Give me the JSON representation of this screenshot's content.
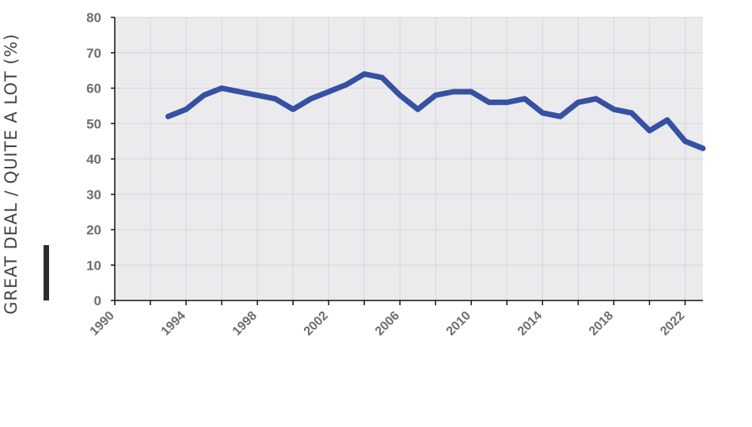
{
  "chart_data": {
    "type": "line",
    "title": "",
    "xlabel": "",
    "ylabel": "GREAT DEAL / QUITE A LOT (%)",
    "xlim": [
      1990,
      2023
    ],
    "ylim": [
      0,
      80
    ],
    "x_ticks": [
      "1990",
      "1994",
      "1998",
      "2002",
      "2006",
      "2010",
      "2014",
      "2018",
      "2022"
    ],
    "y_ticks": [
      "0",
      "10",
      "20",
      "30",
      "40",
      "50",
      "60",
      "70",
      "80"
    ],
    "grid": true,
    "series": [
      {
        "color": "#3651a3",
        "x": [
          1993,
          1994,
          1995,
          1996,
          1997,
          1998,
          1999,
          2000,
          2001,
          2002,
          2003,
          2004,
          2005,
          2006,
          2007,
          2008,
          2009,
          2010,
          2011,
          2012,
          2013,
          2014,
          2015,
          2016,
          2017,
          2018,
          2019,
          2020,
          2021,
          2022,
          2023
        ],
        "values": [
          52,
          54,
          58,
          60,
          59,
          58,
          57,
          54,
          57,
          59,
          61,
          64,
          63,
          58,
          54,
          58,
          59,
          59,
          56,
          56,
          57,
          53,
          52,
          56,
          57,
          54,
          53,
          48,
          51,
          45,
          43
        ]
      }
    ]
  },
  "colors": {
    "plot_background": "#ebebee",
    "grid": "#d6d6da",
    "axis": "#111111",
    "tick_label": "#6e6e72",
    "line": "#3651a3"
  }
}
